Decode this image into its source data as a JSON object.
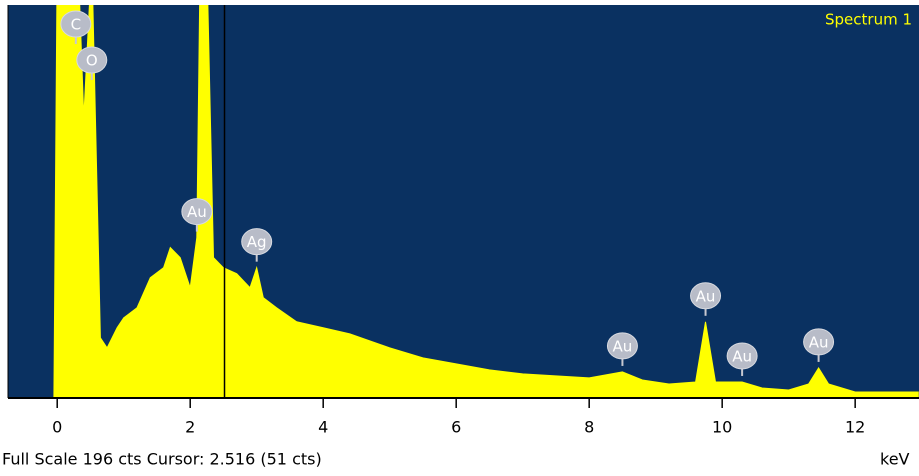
{
  "chart_data": {
    "type": "spectrum",
    "legend": "Spectrum 1",
    "color": "#ffff00",
    "background": "#0a3161",
    "x": [
      -0.05,
      0.0,
      0.28,
      0.4,
      0.52,
      0.65,
      0.75,
      0.9,
      1.0,
      1.2,
      1.4,
      1.6,
      1.7,
      1.85,
      2.0,
      2.1,
      2.15,
      2.25,
      2.35,
      2.5,
      2.7,
      2.9,
      3.0,
      3.1,
      3.3,
      3.6,
      4.0,
      4.4,
      5.0,
      5.5,
      6.0,
      6.5,
      7.0,
      7.5,
      8.0,
      8.5,
      8.8,
      9.2,
      9.6,
      9.75,
      9.9,
      10.3,
      10.6,
      11.0,
      11.3,
      11.45,
      11.6,
      12.0,
      12.5,
      12.95
    ],
    "values": [
      0,
      220,
      250,
      140,
      220,
      30,
      25,
      35,
      40,
      45,
      60,
      65,
      75,
      70,
      55,
      80,
      220,
      220,
      70,
      65,
      62,
      55,
      65,
      50,
      45,
      38,
      35,
      32,
      25,
      20,
      17,
      14,
      12,
      11,
      10,
      13,
      9,
      7,
      8,
      38,
      8,
      8,
      5,
      4,
      7,
      15,
      7,
      3,
      3,
      3
    ],
    "xlim": [
      -0.74,
      12.96
    ],
    "ylim": [
      0,
      196
    ],
    "xticks": [
      0,
      2,
      4,
      6,
      8,
      10,
      12
    ],
    "x_unit": "keV",
    "cursor": 2.516,
    "footer": "Full Scale 196 cts Cursor: 2.516  (51 cts)",
    "peak_labels": [
      {
        "label": "C",
        "x": 0.28
      },
      {
        "label": "O",
        "x": 0.52
      },
      {
        "label": "Au",
        "x": 2.1
      },
      {
        "label": "Ag",
        "x": 3.0
      },
      {
        "label": "Au",
        "x": 8.5
      },
      {
        "label": "Au",
        "x": 9.75
      },
      {
        "label": "Au",
        "x": 10.3
      },
      {
        "label": "Au",
        "x": 11.45
      }
    ]
  }
}
